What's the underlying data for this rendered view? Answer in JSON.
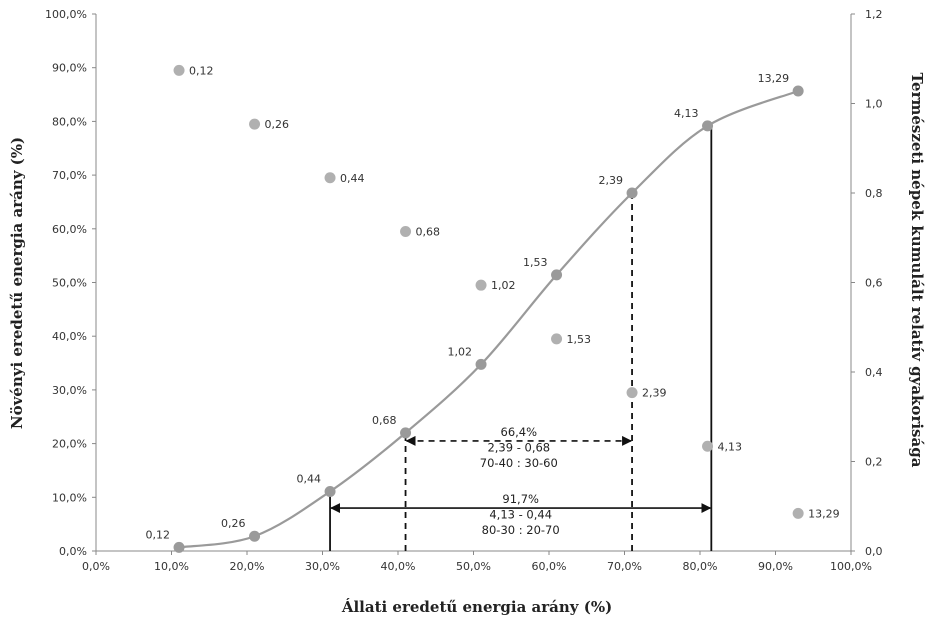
{
  "chart_data": {
    "type": "scatter",
    "xlabel": "Állati eredetű energia arány (%)",
    "ylabel_left": "Növényi eredetű energia arány (%)",
    "ylabel_right": "Természeti népek kumulált relatív gyakorisága",
    "x_ticks": [
      "0,0%",
      "10,0%",
      "20,0%",
      "30,0%",
      "40,0%",
      "50,0%",
      "60,0%",
      "70,0%",
      "80,0%",
      "90,0%",
      "100,0%"
    ],
    "y_left_ticks": [
      "0,0%",
      "10,0%",
      "20,0%",
      "30,0%",
      "40,0%",
      "50,0%",
      "60,0%",
      "70,0%",
      "80,0%",
      "90,0%",
      "100,0%"
    ],
    "y_right_ticks": [
      "0,0",
      "0,2",
      "0,4",
      "0,6",
      "0,8",
      "1,0",
      "1,2"
    ],
    "xlim": [
      0,
      100
    ],
    "ylim_left": [
      0,
      100
    ],
    "ylim_right": [
      0,
      1.2
    ],
    "grid": false,
    "series": [
      {
        "kind": "scatter",
        "axis": "left",
        "color": "#b0b0b0",
        "points": [
          {
            "x": 11,
            "y": 89.5,
            "label": "0,12"
          },
          {
            "x": 21,
            "y": 79.5,
            "label": "0,26"
          },
          {
            "x": 31,
            "y": 69.5,
            "label": "0,44"
          },
          {
            "x": 41,
            "y": 59.5,
            "label": "0,68"
          },
          {
            "x": 51,
            "y": 49.5,
            "label": "1,02"
          },
          {
            "x": 61,
            "y": 39.5,
            "label": "1,53"
          },
          {
            "x": 71,
            "y": 29.5,
            "label": "2,39"
          },
          {
            "x": 81,
            "y": 19.5,
            "label": "4,13"
          },
          {
            "x": 93,
            "y": 7,
            "label": "13,29"
          }
        ]
      },
      {
        "kind": "line",
        "axis": "right",
        "color": "#9a9a9a",
        "points": [
          {
            "x": 11,
            "y": 0.008,
            "label": "0,12"
          },
          {
            "x": 21,
            "y": 0.033,
            "label": "0,26"
          },
          {
            "x": 31,
            "y": 0.133,
            "label": "0,44"
          },
          {
            "x": 41,
            "y": 0.264,
            "label": "0,68"
          },
          {
            "x": 51,
            "y": 0.417,
            "label": "1,02"
          },
          {
            "x": 61,
            "y": 0.617,
            "label": "1,53"
          },
          {
            "x": 71,
            "y": 0.8,
            "label": "2,39"
          },
          {
            "x": 81,
            "y": 0.95,
            "label": "4,13"
          },
          {
            "x": 93,
            "y": 1.028,
            "label": "13,29"
          }
        ]
      }
    ],
    "annotations": {
      "range_dashed": {
        "x_from": 41,
        "x_to": 71,
        "y_top_left": 22,
        "y_top_right": 66.5,
        "arrow_y": 20.5,
        "lines": [
          "66,4%",
          "2,39 - 0,68",
          "70-40 : 30-60"
        ]
      },
      "range_solid": {
        "x_from": 31,
        "x_to": 81.5,
        "y_top_left": 11,
        "y_top_right": 79,
        "arrow_y": 8,
        "lines": [
          "91,7%",
          "4,13 - 0,44",
          "80-30 : 20-70"
        ]
      }
    }
  }
}
